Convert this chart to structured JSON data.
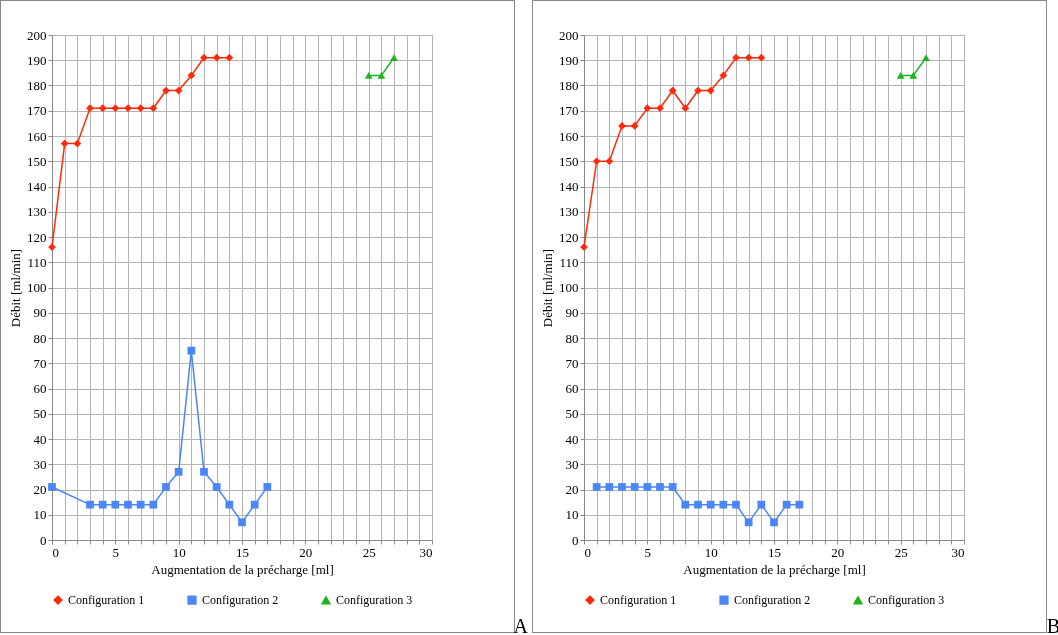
{
  "chart_data": [
    {
      "type": "line",
      "xlabel": "Augmentation de la précharge [ml]",
      "ylabel": "Débit [ml/min]",
      "xlim": [
        0,
        30
      ],
      "ylim": [
        0,
        200
      ],
      "xticks": [
        0,
        {
          "value": 1,
          "label": null
        },
        {
          "value": 2,
          "label": null
        },
        {
          "value": 3,
          "label": null
        },
        {
          "value": 4,
          "label": null
        },
        5,
        {
          "value": 6,
          "label": null
        },
        {
          "value": 7,
          "label": null
        },
        {
          "value": 8,
          "label": null
        },
        {
          "value": 9,
          "label": null
        },
        10,
        {
          "value": 11,
          "label": null
        },
        {
          "value": 12,
          "label": null
        },
        {
          "value": 13,
          "label": null
        },
        {
          "value": 14,
          "label": null
        },
        15,
        {
          "value": 16,
          "label": null
        },
        {
          "value": 17,
          "label": null
        },
        {
          "value": 18,
          "label": null
        },
        {
          "value": 19,
          "label": null
        },
        20,
        {
          "value": 21,
          "label": null
        },
        {
          "value": 22,
          "label": null
        },
        {
          "value": 23,
          "label": null
        },
        {
          "value": 24,
          "label": null
        },
        25,
        {
          "value": 26,
          "label": null
        },
        {
          "value": 27,
          "label": null
        },
        {
          "value": 28,
          "label": null
        },
        {
          "value": 29,
          "label": null
        },
        30
      ],
      "yticks": [
        0,
        10,
        20,
        30,
        40,
        50,
        60,
        70,
        80,
        90,
        100,
        110,
        120,
        130,
        140,
        150,
        160,
        170,
        180,
        190,
        200
      ],
      "grid": true,
      "legend": "bottom",
      "line_style": "solid",
      "series": [
        {
          "name": "Configuration 1",
          "color": "#ff2a0a",
          "marker": "diamond",
          "x": [
            0,
            1,
            2,
            3,
            4,
            5,
            6,
            7,
            8,
            9,
            10,
            11,
            12,
            13,
            14
          ],
          "values": [
            116,
            157,
            157,
            171,
            171,
            171,
            171,
            171,
            171,
            178,
            178,
            184,
            191,
            191,
            191
          ]
        },
        {
          "name": "Configuration 2",
          "color": "#4a86f8",
          "marker": "square",
          "x": [
            0,
            3,
            4,
            5,
            6,
            7,
            8,
            9,
            10,
            11,
            12,
            13,
            14,
            15,
            16,
            17
          ],
          "values": [
            21,
            14,
            14,
            14,
            14,
            14,
            14,
            21,
            27,
            75,
            27,
            21,
            14,
            7,
            14,
            21
          ]
        },
        {
          "name": "Configuration 3",
          "color": "#1fb41f",
          "marker": "triangle",
          "x": [
            25,
            26,
            27
          ],
          "values": [
            184,
            184,
            191
          ]
        }
      ],
      "annotations": [
        "A"
      ]
    },
    {
      "type": "line",
      "xlabel": "Augmentation de la précharge [ml]",
      "ylabel": "Débit [ml/min]",
      "xlim": [
        0,
        30
      ],
      "ylim": [
        0,
        200
      ],
      "xticks": [
        0,
        {
          "value": 1,
          "label": null
        },
        {
          "value": 2,
          "label": null
        },
        {
          "value": 3,
          "label": null
        },
        {
          "value": 4,
          "label": null
        },
        5,
        {
          "value": 6,
          "label": null
        },
        {
          "value": 7,
          "label": null
        },
        {
          "value": 8,
          "label": null
        },
        {
          "value": 9,
          "label": null
        },
        10,
        {
          "value": 11,
          "label": null
        },
        {
          "value": 12,
          "label": null
        },
        {
          "value": 13,
          "label": null
        },
        {
          "value": 14,
          "label": null
        },
        15,
        {
          "value": 16,
          "label": null
        },
        {
          "value": 17,
          "label": null
        },
        {
          "value": 18,
          "label": null
        },
        {
          "value": 19,
          "label": null
        },
        20,
        {
          "value": 21,
          "label": null
        },
        {
          "value": 22,
          "label": null
        },
        {
          "value": 23,
          "label": null
        },
        {
          "value": 24,
          "label": null
        },
        25,
        {
          "value": 26,
          "label": null
        },
        {
          "value": 27,
          "label": null
        },
        {
          "value": 28,
          "label": null
        },
        {
          "value": 29,
          "label": null
        },
        30
      ],
      "yticks": [
        0,
        10,
        20,
        30,
        40,
        50,
        60,
        70,
        80,
        90,
        100,
        110,
        120,
        130,
        140,
        150,
        160,
        170,
        180,
        190,
        200
      ],
      "grid": true,
      "legend": "bottom",
      "line_style": "solid",
      "series": [
        {
          "name": "Configuration 1",
          "color": "#ff2a0a",
          "marker": "diamond",
          "x": [
            0,
            1,
            2,
            3,
            4,
            5,
            6,
            7,
            8,
            9,
            10,
            11,
            12,
            13,
            14
          ],
          "values": [
            116,
            150,
            150,
            164,
            164,
            171,
            171,
            178,
            171,
            178,
            178,
            184,
            191,
            191,
            191
          ]
        },
        {
          "name": "Configuration 2",
          "color": "#4a86f8",
          "marker": "square",
          "x": [
            1,
            2,
            3,
            4,
            5,
            6,
            7,
            8,
            9,
            10,
            11,
            12,
            13,
            14,
            15,
            16,
            17
          ],
          "values": [
            21,
            21,
            21,
            21,
            21,
            21,
            21,
            14,
            14,
            14,
            14,
            14,
            7,
            14,
            7,
            14,
            14
          ]
        },
        {
          "name": "Configuration 3",
          "color": "#1fb41f",
          "marker": "triangle",
          "x": [
            25,
            26,
            27
          ],
          "values": [
            184,
            184,
            191
          ]
        }
      ],
      "annotations": [
        "B"
      ]
    }
  ]
}
